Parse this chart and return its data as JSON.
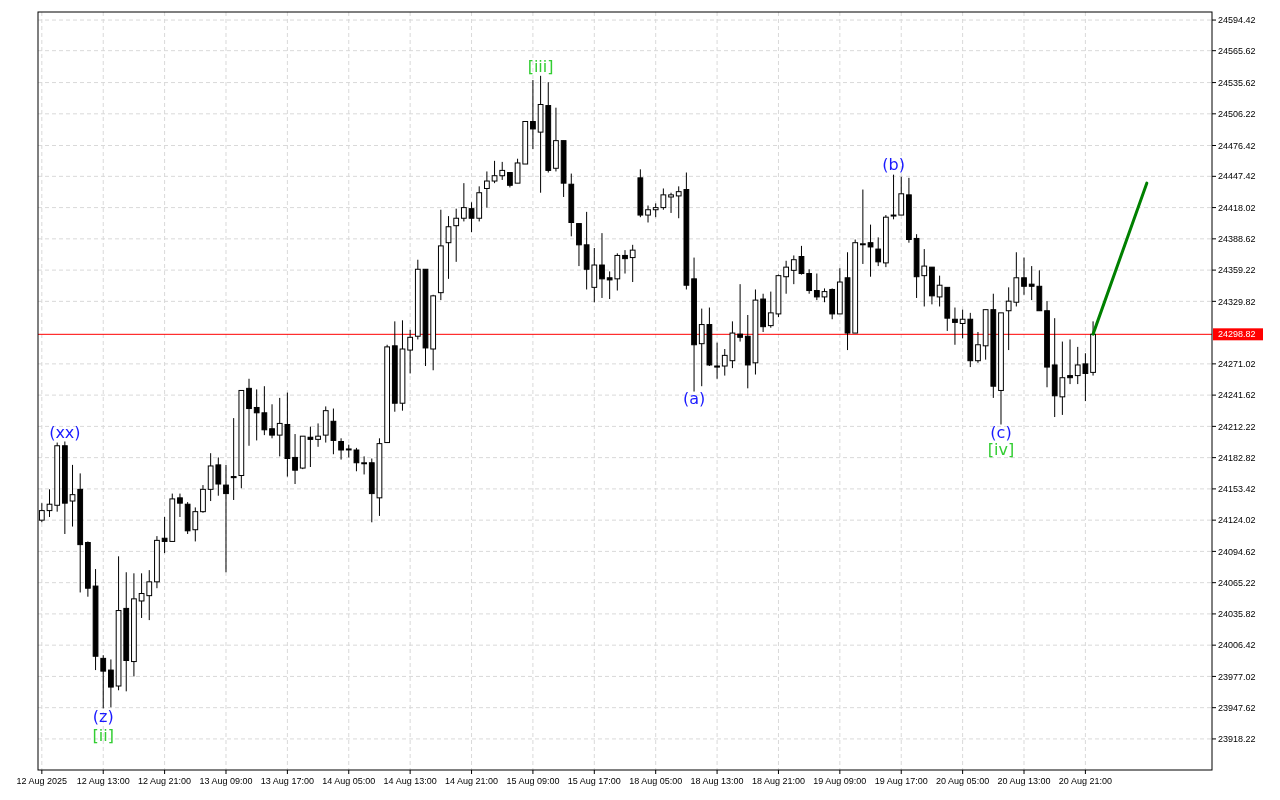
{
  "chart_data": {
    "type": "candlestick",
    "categories": [
      "12 Aug 2025",
      null,
      null,
      null,
      null,
      null,
      null,
      null,
      "12 Aug 13:00",
      null,
      null,
      null,
      null,
      null,
      null,
      null,
      "12 Aug 21:00",
      null,
      null,
      null,
      null,
      null,
      null,
      null,
      "13 Aug 09:00",
      null,
      null,
      null,
      null,
      null,
      null,
      null,
      "13 Aug 17:00",
      null,
      null,
      null,
      null,
      null,
      null,
      null,
      "14 Aug 05:00",
      null,
      null,
      null,
      null,
      null,
      null,
      null,
      "14 Aug 13:00",
      null,
      null,
      null,
      null,
      null,
      null,
      null,
      "14 Aug 21:00",
      null,
      null,
      null,
      null,
      null,
      null,
      null,
      "15 Aug 09:00",
      null,
      null,
      null,
      null,
      null,
      null,
      null,
      "15 Aug 17:00",
      null,
      null,
      null,
      null,
      null,
      null,
      null,
      "18 Aug 05:00",
      null,
      null,
      null,
      null,
      null,
      null,
      null,
      "18 Aug 13:00",
      null,
      null,
      null,
      null,
      null,
      null,
      null,
      "18 Aug 21:00",
      null,
      null,
      null,
      null,
      null,
      null,
      null,
      "19 Aug 09:00",
      null,
      null,
      null,
      null,
      null,
      null,
      null,
      "19 Aug 17:00",
      null,
      null,
      null,
      null,
      null,
      null,
      null,
      "20 Aug 05:00",
      null,
      null,
      null,
      null,
      null,
      null,
      null,
      "20 Aug 13:00",
      null,
      null,
      null,
      null,
      null,
      null,
      null,
      "20 Aug 21:00",
      null,
      null,
      null,
      null,
      null,
      null,
      null,
      null,
      null,
      null,
      null,
      null,
      null,
      null,
      null,
      null
    ],
    "ohlc": [
      [
        24124,
        24140,
        24122,
        24133
      ],
      [
        24133,
        24153,
        24127,
        24139
      ],
      [
        24138,
        24197,
        24132,
        24194
      ],
      [
        24194,
        24198,
        24111,
        24140
      ],
      [
        24142,
        24176,
        24118,
        24148
      ],
      [
        24153,
        24168,
        24056,
        24101
      ],
      [
        24103,
        24104,
        24052,
        24060
      ],
      [
        24062,
        24078,
        23983,
        23996
      ],
      [
        23994,
        23997,
        23947,
        23982
      ],
      [
        23983,
        23993,
        23948,
        23967
      ],
      [
        23968,
        24090,
        23964,
        24039
      ],
      [
        24041,
        24075,
        23963,
        23992
      ],
      [
        23991,
        24074,
        23977,
        24050
      ],
      [
        24048,
        24074,
        24032,
        24055
      ],
      [
        24053,
        24077,
        24030,
        24066
      ],
      [
        24066,
        24109,
        24060,
        24105
      ],
      [
        24107,
        24127,
        24093,
        24104
      ],
      [
        24104,
        24149,
        24104,
        24144
      ],
      [
        24145,
        24149,
        24127,
        24140
      ],
      [
        24139,
        24141,
        24111,
        24114
      ],
      [
        24115,
        24136,
        24104,
        24132
      ],
      [
        24132,
        24157,
        24131,
        24153
      ],
      [
        24153,
        24187,
        24142,
        24175
      ],
      [
        24176,
        24183,
        24147,
        24158
      ],
      [
        24157,
        24176,
        24075,
        24149
      ],
      [
        24165,
        24220,
        24143,
        24164
      ],
      [
        24166,
        24246,
        24154,
        24246
      ],
      [
        24248,
        24257,
        24194,
        24229
      ],
      [
        24230,
        24247,
        24199,
        24225
      ],
      [
        24225,
        24250,
        24204,
        24209
      ],
      [
        24210,
        24233,
        24201,
        24204
      ],
      [
        24204,
        24239,
        24184,
        24215
      ],
      [
        24214,
        24244,
        24165,
        24182
      ],
      [
        24183,
        24205,
        24158,
        24171
      ],
      [
        24173,
        24203,
        24172,
        24203
      ],
      [
        24202,
        24212,
        24174,
        24200
      ],
      [
        24200,
        24215,
        24193,
        24203
      ],
      [
        24204,
        24231,
        24197,
        24227
      ],
      [
        24217,
        24229,
        24186,
        24199
      ],
      [
        24198,
        24201,
        24181,
        24190
      ],
      [
        24191,
        24195,
        24183,
        24191
      ],
      [
        24190,
        24192,
        24170,
        24178
      ],
      [
        24178,
        24184,
        24167,
        24178
      ],
      [
        24178,
        24182,
        24122,
        24149
      ],
      [
        24145,
        24201,
        24128,
        24196
      ],
      [
        24197,
        24289,
        24197,
        24287
      ],
      [
        24288,
        24311,
        24226,
        24234
      ],
      [
        24234,
        24312,
        24227,
        24285
      ],
      [
        24284,
        24303,
        24262,
        24296
      ],
      [
        24297,
        24369,
        24294,
        24360
      ],
      [
        24360,
        24360,
        24269,
        24286
      ],
      [
        24285,
        24336,
        24265,
        24335
      ],
      [
        24338,
        24416,
        24331,
        24382
      ],
      [
        24385,
        24410,
        24351,
        24400
      ],
      [
        24401,
        24417,
        24367,
        24408
      ],
      [
        24408,
        24441,
        24405,
        24418
      ],
      [
        24417,
        24423,
        24395,
        24408
      ],
      [
        24408,
        24438,
        24405,
        24432
      ],
      [
        24436,
        24452,
        24418,
        24443
      ],
      [
        24443,
        24462,
        24441,
        24448
      ],
      [
        24448,
        24461,
        24444,
        24453
      ],
      [
        24451,
        24451,
        24437,
        24439
      ],
      [
        24441,
        24464,
        24441,
        24460
      ],
      [
        24459,
        24499,
        24459,
        24499
      ],
      [
        24499,
        24538,
        24473,
        24492
      ],
      [
        24489,
        24542,
        24432,
        24515
      ],
      [
        24514,
        24536,
        24451,
        24453
      ],
      [
        24455,
        24512,
        24452,
        24481
      ],
      [
        24481,
        24481,
        24428,
        24441
      ],
      [
        24440,
        24450,
        24391,
        24404
      ],
      [
        24403,
        24403,
        24363,
        24383
      ],
      [
        24383,
        24414,
        24341,
        24360
      ],
      [
        24343,
        24380,
        24329,
        24364
      ],
      [
        24364,
        24394,
        24333,
        24351
      ],
      [
        24352,
        24358,
        24332,
        24350
      ],
      [
        24351,
        24375,
        24340,
        24373
      ],
      [
        24373,
        24378,
        24356,
        24370
      ],
      [
        24371,
        24383,
        24348,
        24378
      ],
      [
        24446,
        24454,
        24409,
        24411
      ],
      [
        24411,
        24420,
        24404,
        24416
      ],
      [
        24416,
        24422,
        24409,
        24418
      ],
      [
        24418,
        24436,
        24416,
        24430
      ],
      [
        24428,
        24432,
        24413,
        24430
      ],
      [
        24429,
        24438,
        24408,
        24433
      ],
      [
        24435,
        24451,
        24341,
        24345
      ],
      [
        24351,
        24371,
        24245,
        24289
      ],
      [
        24290,
        24323,
        24250,
        24308
      ],
      [
        24308,
        24324,
        24269,
        24270
      ],
      [
        24269,
        24291,
        24257,
        24268
      ],
      [
        24269,
        24285,
        24260,
        24279
      ],
      [
        24274,
        24311,
        24267,
        24300
      ],
      [
        24299,
        24346,
        24292,
        24296
      ],
      [
        24297,
        24317,
        24248,
        24270
      ],
      [
        24272,
        24341,
        24261,
        24331
      ],
      [
        24332,
        24337,
        24301,
        24306
      ],
      [
        24307,
        24339,
        24305,
        24319
      ],
      [
        24318,
        24355,
        24315,
        24354
      ],
      [
        24353,
        24368,
        24337,
        24362
      ],
      [
        24359,
        24373,
        24346,
        24369
      ],
      [
        24372,
        24382,
        24355,
        24356
      ],
      [
        24356,
        24360,
        24337,
        24340
      ],
      [
        24340,
        24356,
        24331,
        24334
      ],
      [
        24334,
        24342,
        24329,
        24339
      ],
      [
        24341,
        24342,
        24313,
        24318
      ],
      [
        24318,
        24361,
        24318,
        24348
      ],
      [
        24352,
        24376,
        24284,
        24300
      ],
      [
        24300,
        24388,
        24300,
        24385
      ],
      [
        24384,
        24435,
        24365,
        24384
      ],
      [
        24385,
        24402,
        24353,
        24381
      ],
      [
        24379,
        24390,
        24363,
        24367
      ],
      [
        24366,
        24411,
        24362,
        24409
      ],
      [
        24411,
        24449,
        24407,
        24411
      ],
      [
        24411,
        24447,
        24411,
        24431
      ],
      [
        24430,
        24446,
        24385,
        24388
      ],
      [
        24389,
        24393,
        24333,
        24353
      ],
      [
        24354,
        24379,
        24325,
        24363
      ],
      [
        24362,
        24362,
        24327,
        24335
      ],
      [
        24334,
        24354,
        24325,
        24345
      ],
      [
        24343,
        24343,
        24302,
        24314
      ],
      [
        24313,
        24324,
        24289,
        24310
      ],
      [
        24309,
        24322,
        24295,
        24313
      ],
      [
        24313,
        24319,
        24268,
        24274
      ],
      [
        24274,
        24301,
        24272,
        24289
      ],
      [
        24288,
        24322,
        24275,
        24322
      ],
      [
        24322,
        24337,
        24239,
        24250
      ],
      [
        24246,
        24319,
        24214,
        24319
      ],
      [
        24321,
        24343,
        24284,
        24330
      ],
      [
        24329,
        24376,
        24325,
        24352
      ],
      [
        24352,
        24371,
        24336,
        24344
      ],
      [
        24346,
        24363,
        24331,
        24344
      ],
      [
        24344,
        24359,
        24321,
        24321
      ],
      [
        24321,
        24330,
        24249,
        24268
      ],
      [
        24270,
        24314,
        24221,
        24241
      ],
      [
        24240,
        24292,
        24223,
        24258
      ],
      [
        24260,
        24294,
        24252,
        24258
      ],
      [
        24260,
        24287,
        24252,
        24270
      ],
      [
        24271,
        24281,
        24236,
        24262
      ],
      [
        24263,
        24311,
        24260,
        24298.82
      ],
      null,
      null,
      null,
      null,
      null,
      null,
      null,
      null,
      null,
      null,
      null,
      null,
      null,
      null,
      null
    ],
    "series": [
      {
        "type": "line",
        "color": "#008000",
        "values": [
          null,
          null,
          null,
          null,
          null,
          null,
          null,
          null,
          null,
          null,
          null,
          null,
          null,
          null,
          null,
          null,
          null,
          null,
          null,
          null,
          null,
          null,
          null,
          null,
          null,
          null,
          null,
          null,
          null,
          null,
          null,
          null,
          null,
          null,
          null,
          null,
          null,
          null,
          null,
          null,
          null,
          null,
          null,
          null,
          null,
          null,
          null,
          null,
          null,
          null,
          null,
          null,
          null,
          null,
          null,
          null,
          null,
          null,
          null,
          null,
          null,
          null,
          null,
          null,
          null,
          null,
          null,
          null,
          null,
          null,
          null,
          null,
          null,
          null,
          null,
          null,
          null,
          null,
          null,
          null,
          null,
          null,
          null,
          null,
          null,
          null,
          null,
          null,
          null,
          null,
          null,
          null,
          null,
          null,
          null,
          null,
          null,
          null,
          null,
          null,
          null,
          null,
          null,
          null,
          null,
          null,
          null,
          null,
          null,
          null,
          null,
          null,
          null,
          null,
          null,
          null,
          null,
          null,
          null,
          null,
          null,
          null,
          null,
          null,
          null,
          null,
          null,
          null,
          null,
          null,
          null,
          null,
          null,
          null,
          null,
          null,
          null,
          24299,
          null,
          null,
          null,
          null,
          null,
          null,
          24441,
          null,
          null,
          null,
          null,
          null,
          null,
          null,
          null
        ]
      }
    ],
    "ylim": [
      23889,
      24602
    ],
    "yticks": [
      24594.42,
      24565.62,
      24535.62,
      24506.22,
      24476.42,
      24447.42,
      24418.02,
      24388.62,
      24359.22,
      24329.82,
      24271.02,
      24241.62,
      24212.22,
      24182.82,
      24153.42,
      24124.02,
      24094.62,
      24065.22,
      24035.82,
      24006.42,
      23977.02,
      23947.62,
      23918.22
    ],
    "grid": true,
    "ref_lines": [
      {
        "axis": "y",
        "value": 24298.82,
        "label": "24298.82",
        "color": "#ff0000"
      }
    ],
    "annotations": [
      "(xx)",
      "(z)",
      "[ii]",
      "[iii]",
      "(a)",
      "(b)",
      "(c)",
      "[iv]"
    ]
  }
}
